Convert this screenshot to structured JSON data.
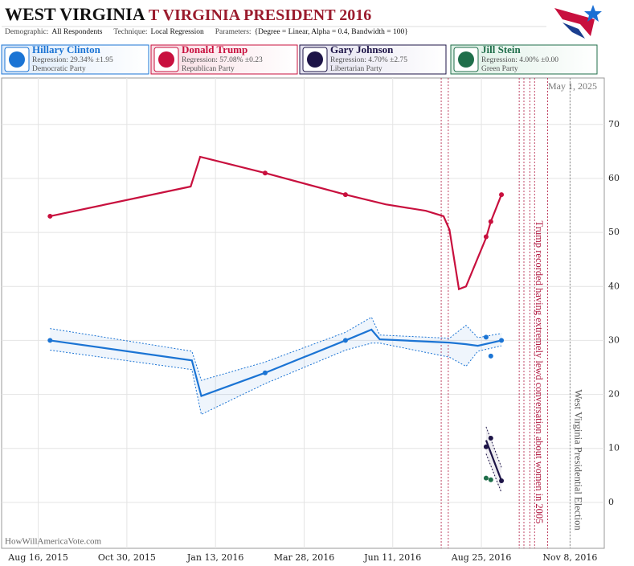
{
  "header": {
    "title_state": "WEST VIRGINIA",
    "title_rest": "T VIRGINIA PRESIDENT 2016",
    "parameters": [
      {
        "label": "Demographic:",
        "value": "All Respondents"
      },
      {
        "label": "Technique:",
        "value": "Local Regression"
      },
      {
        "label": "Parameters:",
        "value": "{Degree = Linear, Alpha = 0.4, Bandwidth = 100}"
      }
    ]
  },
  "chart_data": {
    "type": "line",
    "date_stamp": "May 1, 2025",
    "watermark": "HowWillAmericaVote.com",
    "xlim": [
      "2015-07-16",
      "2016-12-07"
    ],
    "xticks": [
      {
        "value": "2015-08-16",
        "label": "Aug 16, 2015"
      },
      {
        "value": "2015-10-30",
        "label": "Oct 30, 2015"
      },
      {
        "value": "2016-01-13",
        "label": "Jan 13, 2016"
      },
      {
        "value": "2016-03-28",
        "label": "Mar 28, 2016"
      },
      {
        "value": "2016-06-11",
        "label": "Jun 11, 2016"
      },
      {
        "value": "2016-08-25",
        "label": "Aug 25, 2016"
      },
      {
        "value": "2016-11-08",
        "label": "Nov 8, 2016"
      }
    ],
    "ylim": [
      -8.5,
      78.6
    ],
    "yticks": [
      0,
      10,
      20,
      30,
      40,
      50,
      60,
      70
    ],
    "grid": true,
    "events": [
      {
        "x": "2016-07-22",
        "color": "#b0173f"
      },
      {
        "x": "2016-07-28",
        "color": "#b0173f"
      },
      {
        "x": "2016-09-26",
        "color": "#b0173f"
      },
      {
        "x": "2016-09-30",
        "color": "#b0173f"
      },
      {
        "x": "2016-10-05",
        "color": "#b0173f"
      },
      {
        "x": "2016-10-09",
        "color": "#b0173f"
      },
      {
        "x": "2016-10-20",
        "color": "#b0173f"
      },
      {
        "x": "2016-11-08",
        "color": "#777777"
      }
    ],
    "annotations": [
      {
        "x": "2016-10-12",
        "text": "Trump recorded having extremely lewd conversation about women in 2005",
        "color": "#b0173f"
      },
      {
        "x": "2016-11-14",
        "text": "West Virginia Presidential Election",
        "color": "#555555"
      }
    ],
    "series": [
      {
        "name": "Hillary Clinton",
        "regression": "Regression: 29.34% ±1.95",
        "party": "Democratic Party",
        "color": "#1b74d4",
        "line_x": [
          "2015-08-26",
          "2015-12-24",
          "2016-01-01",
          "2016-02-24",
          "2016-05-02",
          "2016-05-24",
          "2016-05-31",
          "2016-07-29",
          "2016-08-12",
          "2016-08-22",
          "2016-09-11"
        ],
        "values": [
          30,
          26.3,
          19.7,
          24,
          30,
          32,
          30.2,
          29.6,
          29.3,
          29,
          30
        ],
        "upper": [
          32.2,
          28,
          22.6,
          26,
          31.5,
          34.3,
          31,
          30.4,
          32.8,
          30.5,
          31.3
        ],
        "lower": [
          28.2,
          24.6,
          16.3,
          22,
          28.2,
          29.5,
          29.5,
          26.9,
          25.2,
          28,
          29
        ],
        "poll_x": [
          "2015-08-26",
          "2016-02-24",
          "2016-05-02",
          "2016-08-29",
          "2016-09-02",
          "2016-09-11"
        ],
        "poll_values": [
          30,
          24,
          30,
          30.6,
          27.1,
          30
        ]
      },
      {
        "name": "Donald Trump",
        "regression": "Regression: 57.08% ±0.23",
        "party": "Republican Party",
        "color": "#c8103e",
        "line_x": [
          "2015-08-26",
          "2015-12-23",
          "2015-12-31",
          "2016-02-24",
          "2016-05-02",
          "2016-06-05",
          "2016-07-09",
          "2016-07-24",
          "2016-07-29",
          "2016-08-06",
          "2016-08-12",
          "2016-08-29",
          "2016-09-02",
          "2016-09-11"
        ],
        "values": [
          53,
          58.5,
          64,
          61,
          57,
          55.2,
          54,
          53,
          50.5,
          39.5,
          40,
          49,
          52,
          57
        ],
        "poll_x": [
          "2015-08-26",
          "2016-02-24",
          "2016-05-02",
          "2016-08-29",
          "2016-09-02",
          "2016-09-11"
        ],
        "poll_values": [
          53,
          61,
          57,
          49.2,
          52,
          57
        ]
      },
      {
        "name": "Gary Johnson",
        "regression": "Regression: 4.70% ±2.75",
        "party": "Libertarian Party",
        "color": "#1d1447",
        "line_x": [
          "2016-08-29",
          "2016-09-11"
        ],
        "values": [
          11.5,
          4
        ],
        "upper": [
          14,
          6.5
        ],
        "lower": [
          9,
          1.8
        ],
        "poll_x": [
          "2016-08-29",
          "2016-09-02",
          "2016-09-11"
        ],
        "poll_values": [
          10.3,
          11.9,
          4
        ]
      },
      {
        "name": "Jill Stein",
        "regression": "Regression: 4.00% ±0.00",
        "party": "Green Party",
        "color": "#1f6e4a",
        "poll_x": [
          "2016-08-29",
          "2016-09-02"
        ],
        "poll_values": [
          4.5,
          4.2
        ]
      }
    ]
  }
}
